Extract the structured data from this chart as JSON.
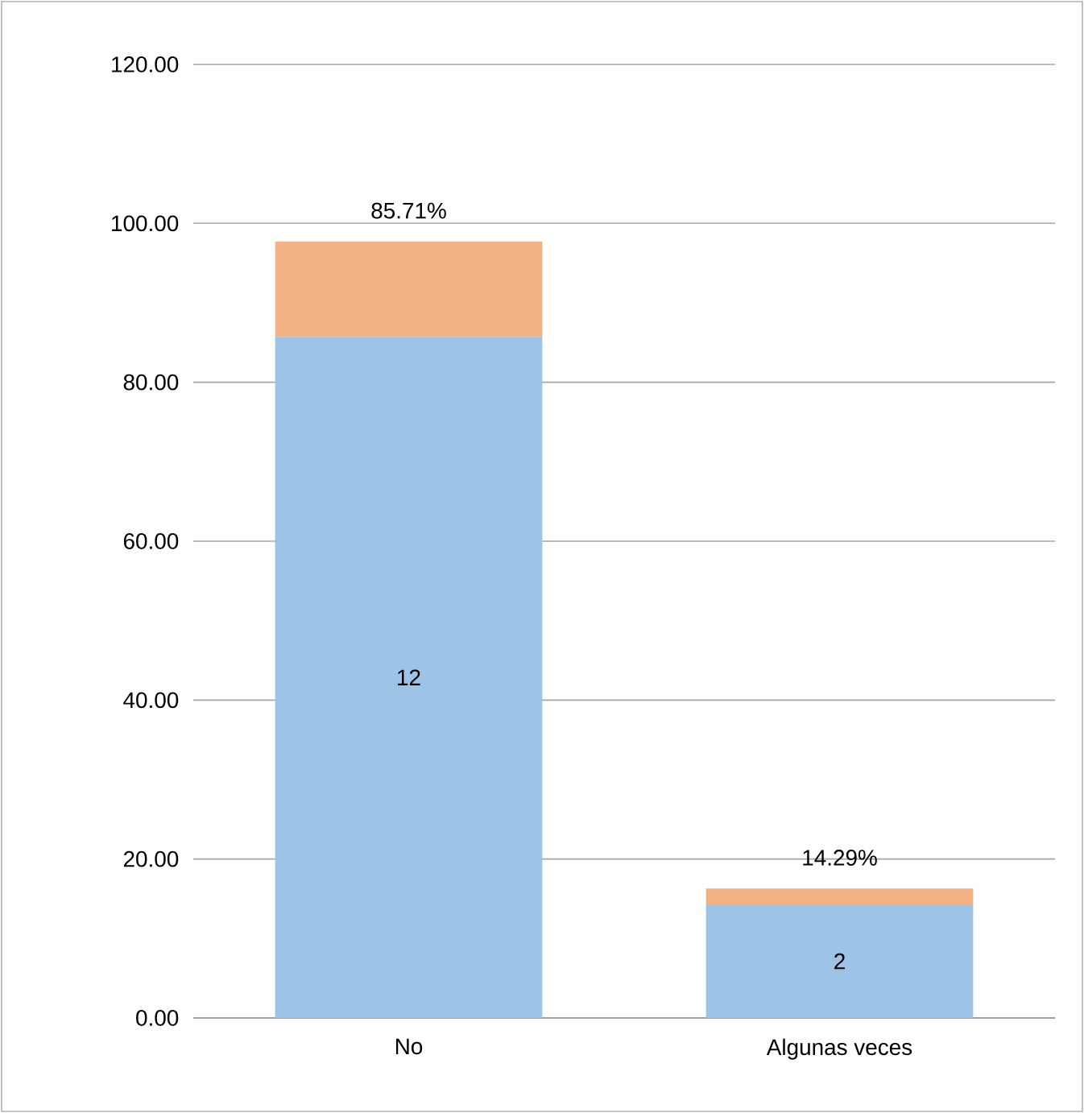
{
  "chart_data": {
    "type": "bar",
    "stacked": true,
    "categories": [
      "No",
      "Algunas veces"
    ],
    "series": [
      {
        "color": "#9dc3e6",
        "values": [
          85.71,
          14.29
        ]
      },
      {
        "color": "#f4b183",
        "values": [
          12,
          2
        ]
      }
    ],
    "annotations": [
      "85.71%",
      "12",
      "14.29%",
      "2"
    ],
    "ylim": [
      0,
      120
    ],
    "yticks": [
      {
        "value": 0,
        "label": "0.00"
      },
      {
        "value": 20,
        "label": "20.00"
      },
      {
        "value": 40,
        "label": "40.00"
      },
      {
        "value": 60,
        "label": "60.00"
      },
      {
        "value": 80,
        "label": "80.00"
      },
      {
        "value": 100,
        "label": "100.00"
      },
      {
        "value": 120,
        "label": "120.00"
      }
    ],
    "grid": "y"
  }
}
